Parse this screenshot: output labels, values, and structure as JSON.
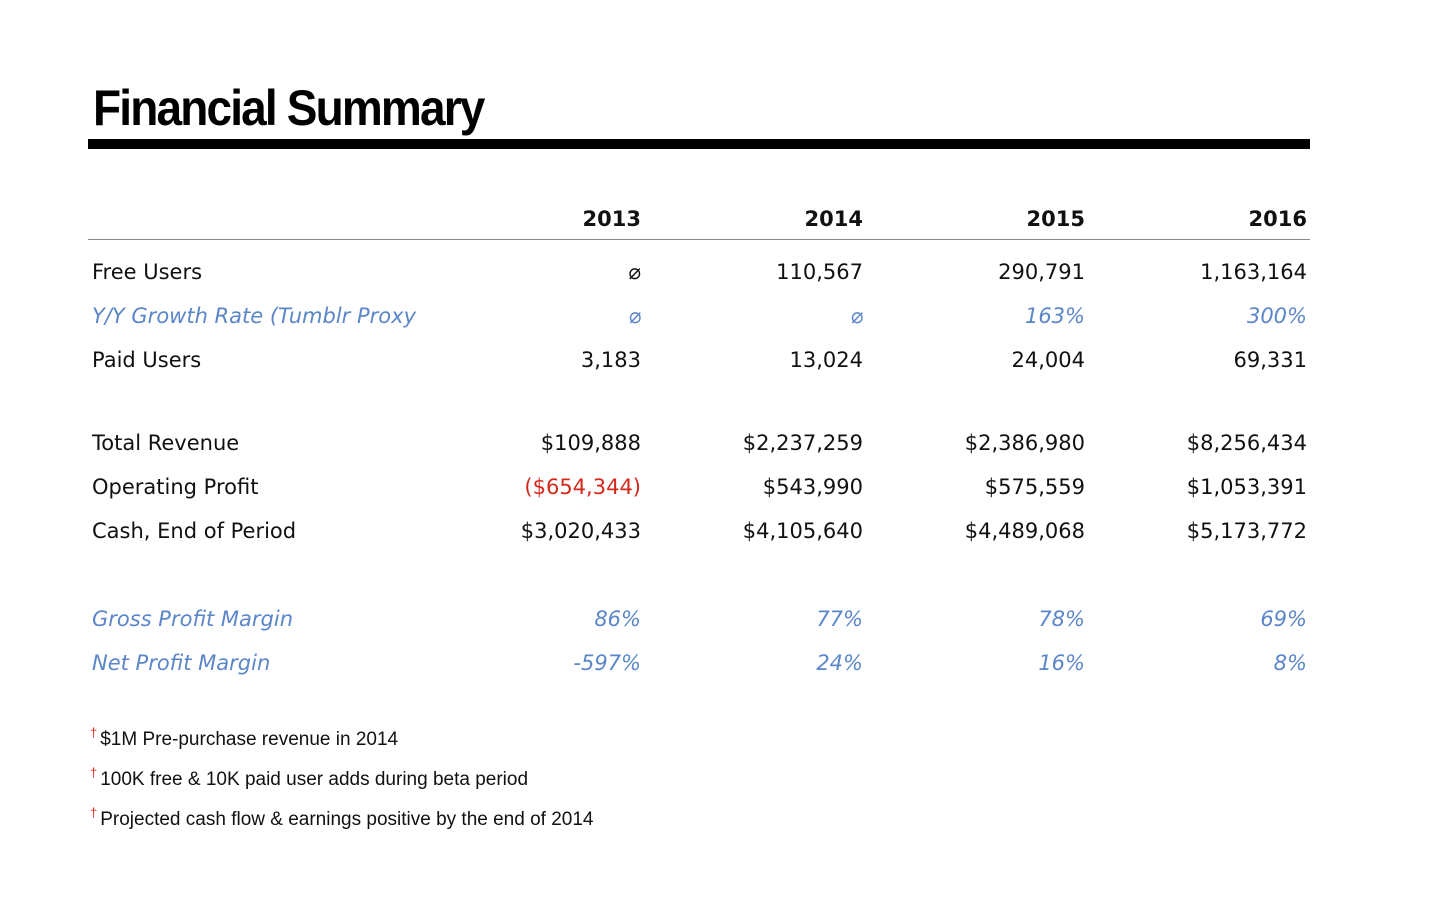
{
  "title": "Financial Summary",
  "years": [
    "2013",
    "2014",
    "2015",
    "2016"
  ],
  "rows": {
    "free_users": {
      "label": "Free Users",
      "values": [
        "⌀",
        "110,567",
        "290,791",
        "1,163,164"
      ]
    },
    "yy_growth": {
      "label": "Y/Y Growth Rate (Tumblr Proxy",
      "values": [
        "⌀",
        "⌀",
        "163%",
        "300%"
      ]
    },
    "paid_users": {
      "label": "Paid Users",
      "values": [
        "3,183",
        "13,024",
        "24,004",
        "69,331"
      ]
    },
    "total_revenue": {
      "label": "Total Revenue",
      "values": [
        "$109,888",
        "$2,237,259",
        "$2,386,980",
        "$8,256,434"
      ]
    },
    "operating_profit": {
      "label": "Operating Profit",
      "values": [
        "($654,344)",
        "$543,990",
        "$575,559",
        "$1,053,391"
      ]
    },
    "cash_end": {
      "label": "Cash, End of Period",
      "values": [
        "$3,020,433",
        "$4,105,640",
        "$4,489,068",
        "$5,173,772"
      ]
    },
    "gross_margin": {
      "label": "Gross Profit Margin",
      "values": [
        "86%",
        "77%",
        "78%",
        "69%"
      ]
    },
    "net_margin": {
      "label": "Net Profit Margin",
      "values": [
        "-597%",
        "24%",
        "16%",
        "8%"
      ]
    }
  },
  "footnotes": {
    "marker": "†",
    "items": [
      "$1M Pre-purchase revenue in 2014",
      "100K free & 10K paid user adds during beta period",
      "Projected cash flow & earnings positive by the end of 2014"
    ]
  },
  "colors": {
    "accent_blue": "#5b86c8",
    "negative_red": "#d42a1c",
    "rule_black": "#000000"
  }
}
